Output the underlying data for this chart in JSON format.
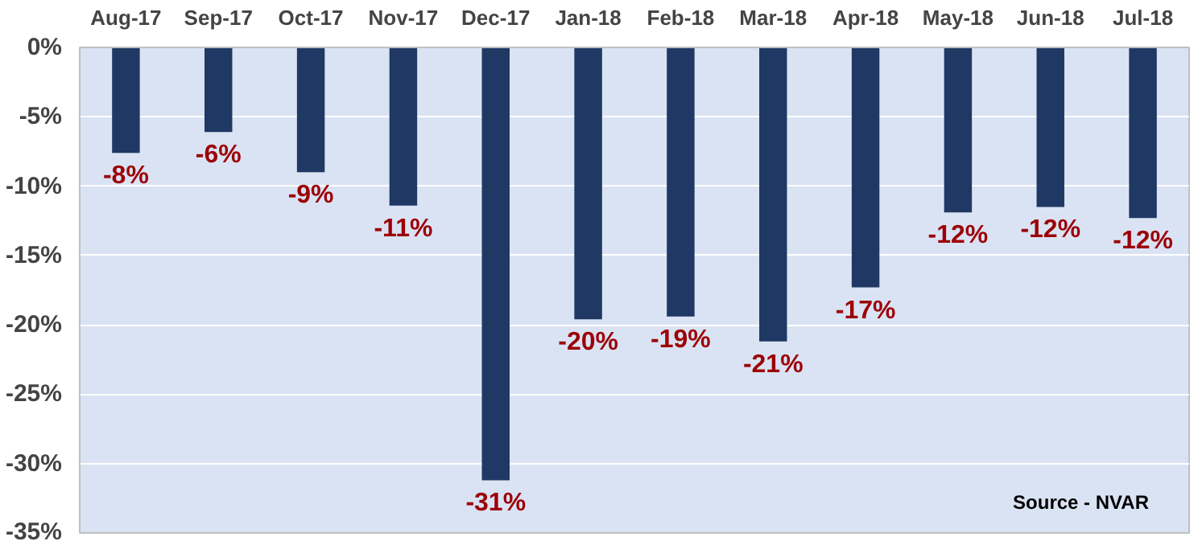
{
  "chart_data": {
    "type": "bar",
    "categories": [
      "Aug-17",
      "Sep-17",
      "Oct-17",
      "Nov-17",
      "Dec-17",
      "Jan-18",
      "Feb-18",
      "Mar-18",
      "Apr-18",
      "May-18",
      "Jun-18",
      "Jul-18"
    ],
    "values": [
      -7.6,
      -6.1,
      -9.0,
      -11.4,
      -31.2,
      -19.6,
      -19.4,
      -21.2,
      -17.3,
      -11.9,
      -11.5,
      -12.3
    ],
    "value_labels": [
      "-8%",
      "-6%",
      "-9%",
      "-11%",
      "-31%",
      "-20%",
      "-19%",
      "-21%",
      "-17%",
      "-12%",
      "-12%",
      "-12%"
    ],
    "color": "#1f3864",
    "ylim": [
      -35,
      0
    ],
    "yticks": [
      {
        "value": 0,
        "label": "0%"
      },
      {
        "value": -5,
        "label": "-5%"
      },
      {
        "value": -10,
        "label": "-10%"
      },
      {
        "value": -15,
        "label": "-15%"
      },
      {
        "value": -20,
        "label": "-20%"
      },
      {
        "value": -25,
        "label": "-25%"
      },
      {
        "value": -30,
        "label": "-30%"
      },
      {
        "value": -35,
        "label": "-35%"
      }
    ],
    "grid": "y",
    "annotations": [
      "Source - NVAR"
    ]
  }
}
